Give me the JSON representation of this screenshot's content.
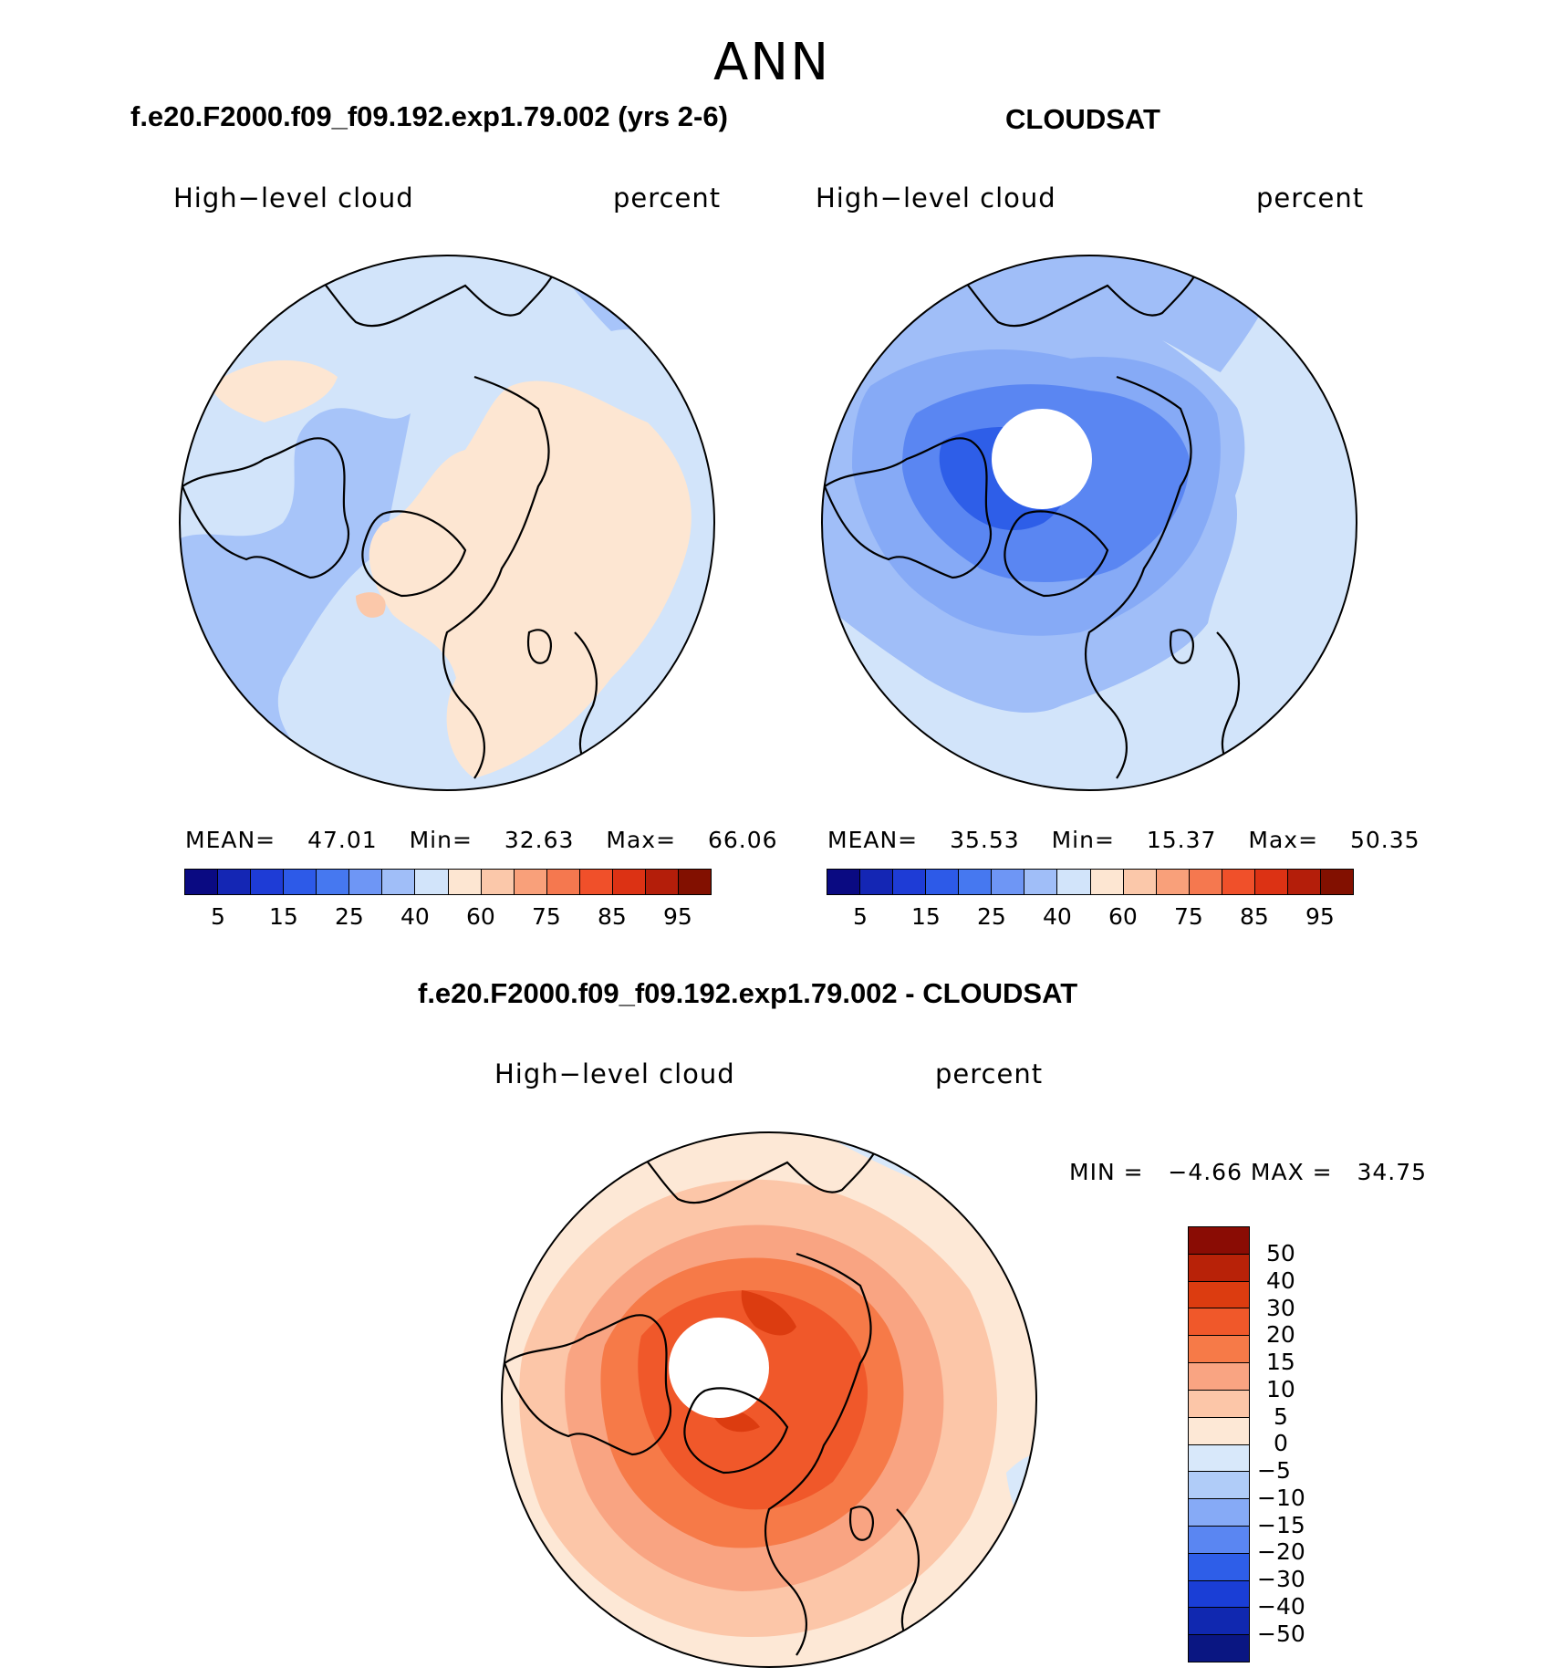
{
  "title": "ANN",
  "panels": [
    {
      "title": "f.e20.F2000.f09_f09.192.exp1.79.002 (yrs 2-6)",
      "left_label": "High−level cloud",
      "right_label": "percent",
      "stats": {
        "mean_label": "MEAN=",
        "mean": "47.01",
        "min_label": "Min=",
        "min": "32.63",
        "max_label": "Max=",
        "max": "66.06"
      }
    },
    {
      "title": "CLOUDSAT",
      "left_label": "High−level cloud",
      "right_label": "percent",
      "stats": {
        "mean_label": "MEAN=",
        "mean": "35.53",
        "min_label": "Min=",
        "min": "15.37",
        "max_label": "Max=",
        "max": "50.35"
      }
    },
    {
      "title": "f.e20.F2000.f09_f09.192.exp1.79.002 - CLOUDSAT",
      "left_label": "High−level cloud",
      "right_label": "percent",
      "minmax": "MIN =   −4.66 MAX =   34.75"
    }
  ],
  "colorbar_top": {
    "colors": [
      "#0a0a82",
      "#1426b4",
      "#1e3cd6",
      "#2d5ae8",
      "#4678f0",
      "#6e96f5",
      "#a0bef8",
      "#d2e4fa",
      "#fde6d2",
      "#fbc8aa",
      "#f9a07a",
      "#f5784f",
      "#f0502a",
      "#dc3214",
      "#b41e0a",
      "#821000"
    ],
    "ticks": [
      "5",
      "15",
      "25",
      "40",
      "60",
      "75",
      "85",
      "95"
    ]
  },
  "colorbar_diff": {
    "colors_top_to_bottom": [
      "#8a0c04",
      "#b82208",
      "#dc3c10",
      "#f0582a",
      "#f67a48",
      "#f9a482",
      "#fcc6a8",
      "#fde8d6",
      "#d8e8fa",
      "#b0ccf8",
      "#86aaf6",
      "#5a86f2",
      "#2e5ee8",
      "#1a3ed6",
      "#1028b0",
      "#0a1682"
    ],
    "labels": [
      "50",
      "40",
      "30",
      "20",
      "15",
      "10",
      "5",
      "0",
      "−5",
      "−10",
      "−15",
      "−20",
      "−30",
      "−40",
      "−50"
    ]
  }
}
